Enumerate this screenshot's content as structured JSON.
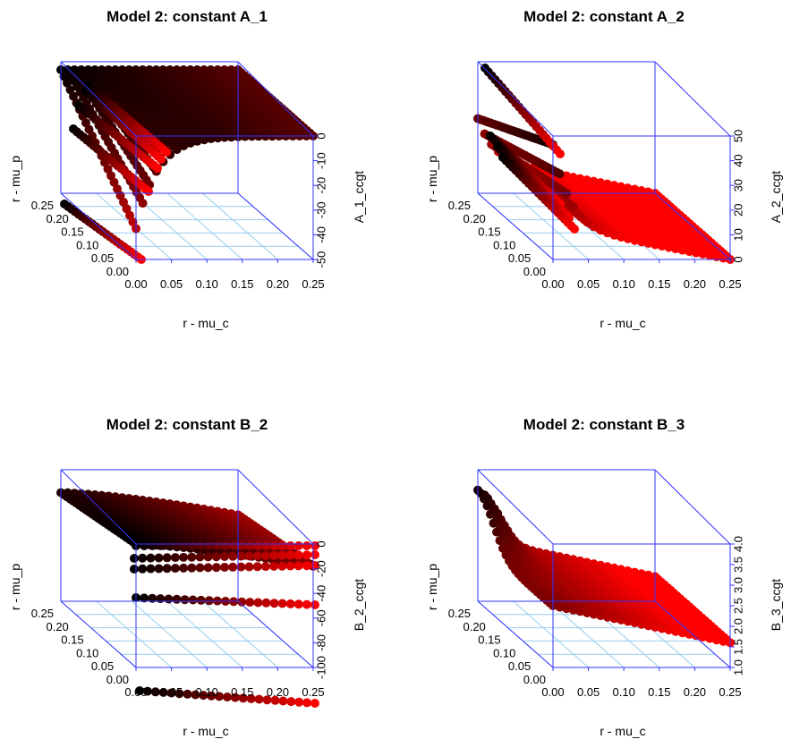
{
  "colors": {
    "box": "#3333ff",
    "grid": "#99ccee",
    "point_low": "#000000",
    "point_high": "#ff0000",
    "text": "#000000"
  },
  "chart_data": [
    {
      "type": "scatter3d",
      "title": "Model 2: constant A_1",
      "xlabel": "r - mu_c",
      "ylabel": "r - mu_p",
      "zlabel": "A_1_ccgt",
      "xlim": [
        0,
        0.25
      ],
      "ylim": [
        0,
        0.25
      ],
      "zlim": [
        -50,
        0
      ],
      "x_ticks": [
        "0.00",
        "0.05",
        "0.10",
        "0.15",
        "0.20",
        "0.25"
      ],
      "y_ticks": [
        "0.00",
        "0.05",
        "0.10",
        "0.15",
        "0.20",
        "0.25"
      ],
      "z_ticks": [
        "-50",
        "-40",
        "-30",
        "-20",
        "-10",
        "0"
      ],
      "grid": true,
      "surface": "A_1"
    },
    {
      "type": "scatter3d",
      "title": "Model 2: constant A_2",
      "xlabel": "r - mu_c",
      "ylabel": "r - mu_p",
      "zlabel": "A_2_ccgt",
      "xlim": [
        0,
        0.25
      ],
      "ylim": [
        0,
        0.25
      ],
      "zlim": [
        0,
        50
      ],
      "x_ticks": [
        "0.00",
        "0.05",
        "0.10",
        "0.15",
        "0.20",
        "0.25"
      ],
      "y_ticks": [
        "0.00",
        "0.05",
        "0.10",
        "0.15",
        "0.20",
        "0.25"
      ],
      "z_ticks": [
        "0",
        "10",
        "20",
        "30",
        "40",
        "50"
      ],
      "grid": true,
      "surface": "A_2"
    },
    {
      "type": "scatter3d",
      "title": "Model 2: constant B_2",
      "xlabel": "r - mu_c",
      "ylabel": "r - mu_p",
      "zlabel": "B_2_ccgt",
      "xlim": [
        0,
        0.25
      ],
      "ylim": [
        0,
        0.25
      ],
      "zlim": [
        -100,
        0
      ],
      "x_ticks": [
        "0.00",
        "0.05",
        "0.10",
        "0.15",
        "0.20",
        "0.25"
      ],
      "y_ticks": [
        "0.00",
        "0.05",
        "0.10",
        "0.15",
        "0.20",
        "0.25"
      ],
      "z_ticks": [
        "-100",
        "-80",
        "-60",
        "-40",
        "-20",
        "0"
      ],
      "grid": true,
      "surface": "B_2"
    },
    {
      "type": "scatter3d",
      "title": "Model 2: constant B_3",
      "xlabel": "r - mu_c",
      "ylabel": "r - mu_p",
      "zlabel": "B_3_ccgt",
      "xlim": [
        0,
        0.25
      ],
      "ylim": [
        0,
        0.25
      ],
      "zlim": [
        1.0,
        4.0
      ],
      "x_ticks": [
        "0.00",
        "0.05",
        "0.10",
        "0.15",
        "0.20",
        "0.25"
      ],
      "y_ticks": [
        "0.00",
        "0.05",
        "0.10",
        "0.15",
        "0.20",
        "0.25"
      ],
      "z_ticks": [
        "1.0",
        "1.5",
        "2.0",
        "2.5",
        "3.0",
        "3.5",
        "4.0"
      ],
      "grid": true,
      "surface": "B_3"
    }
  ]
}
